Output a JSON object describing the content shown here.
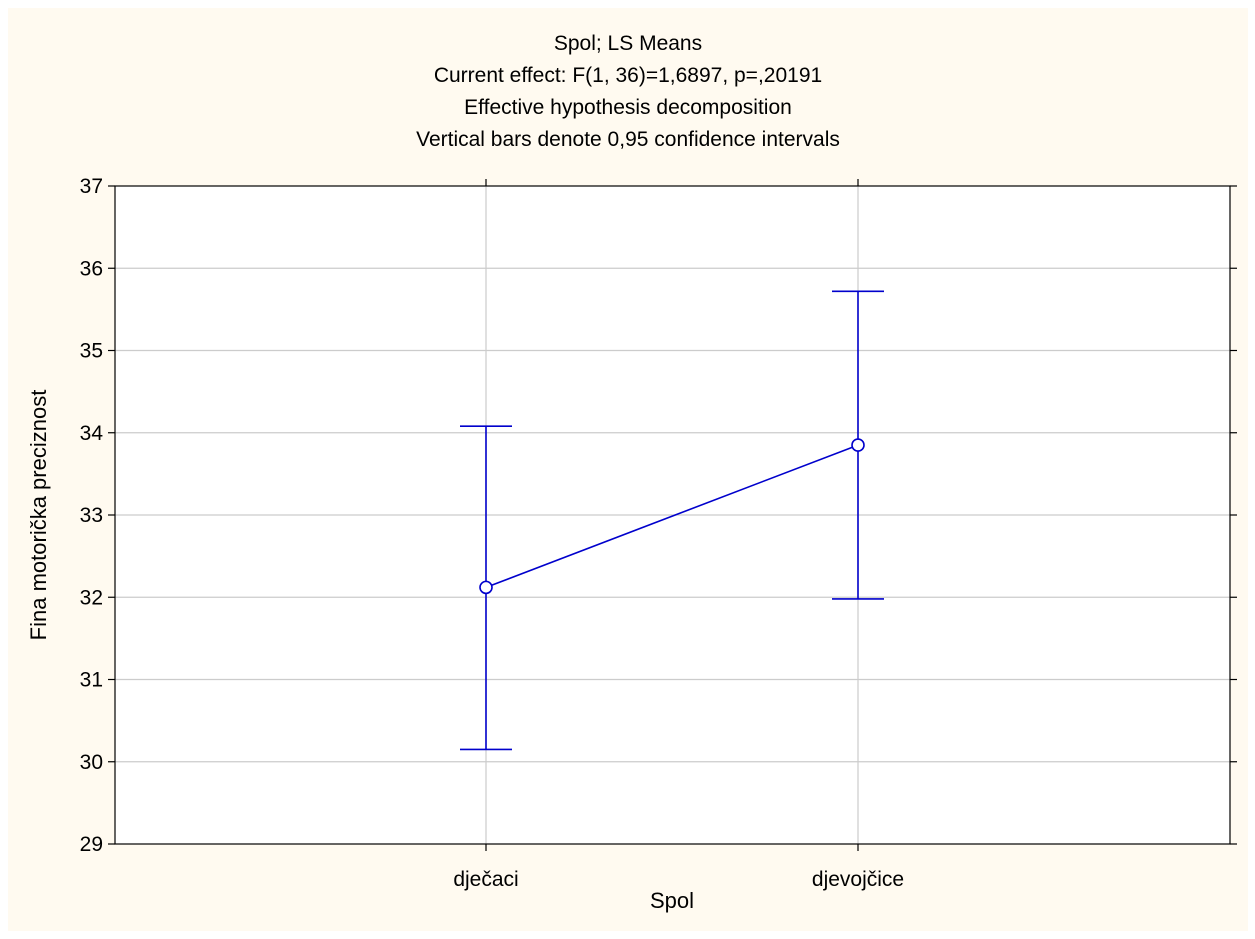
{
  "colors": {
    "background": "#fffaf0",
    "plot_background": "#ffffff",
    "grid": "#cccccc",
    "axis": "#000000",
    "series": "#0000cc"
  },
  "chart_data": {
    "type": "line",
    "title_lines": [
      "Spol; LS Means",
      "Current effect: F(1, 36)=1,6897, p=,20191",
      "Effective hypothesis decomposition",
      "Vertical bars denote 0,95 confidence intervals"
    ],
    "xlabel": "Spol",
    "ylabel": "Fina motorička preciznost",
    "categories": [
      "dječaci",
      "djevojčice"
    ],
    "series": [
      {
        "values": [
          32.12,
          33.85
        ],
        "ci_lower": [
          30.15,
          31.98
        ],
        "ci_upper": [
          34.08,
          35.72
        ]
      }
    ],
    "ylim": [
      29,
      37
    ],
    "yticks": [
      "29",
      "30",
      "31",
      "32",
      "33",
      "34",
      "35",
      "36",
      "37"
    ],
    "grid": true,
    "marker": "circle-open"
  }
}
